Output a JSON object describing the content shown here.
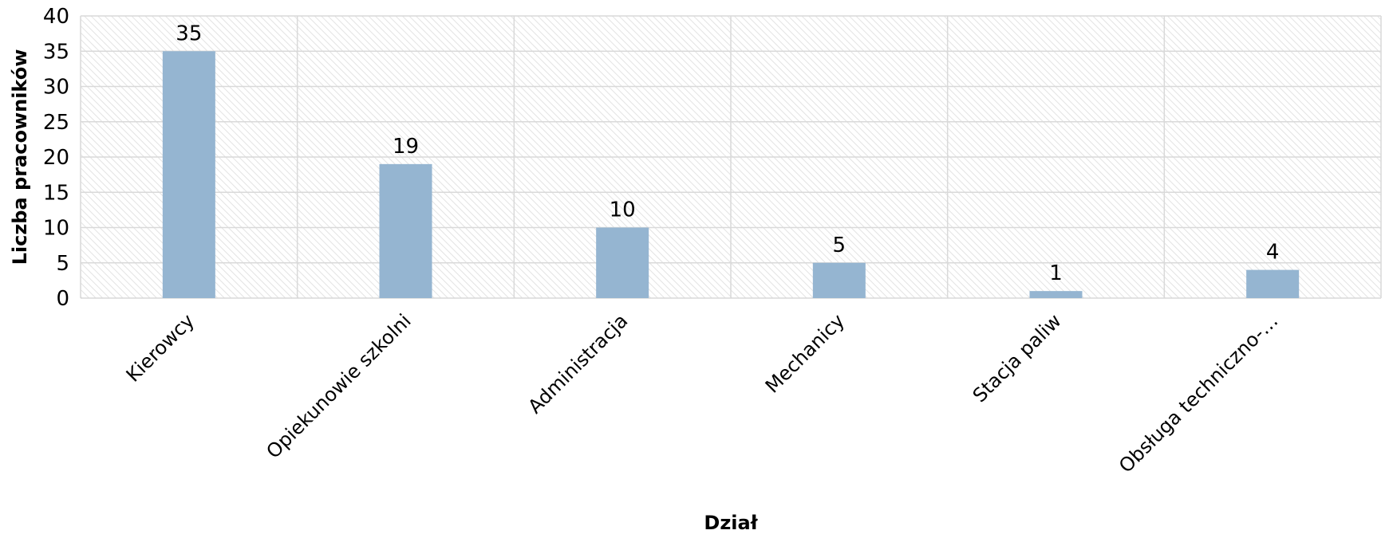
{
  "chart_data": {
    "type": "bar",
    "xlabel": "Dział",
    "ylabel": "Liczba pracowników",
    "categories": [
      "Kierowcy",
      "Opiekunowie szkolni",
      "Administracja",
      "Mechanicy",
      "Stacja paliw",
      "Obsługa techniczno-…"
    ],
    "values": [
      35,
      19,
      10,
      5,
      1,
      4
    ],
    "ylim": [
      0,
      40
    ],
    "ytick_step": 5,
    "grid": true,
    "legend": "none",
    "data_labels": true
  },
  "colors": {
    "bar": "#95b5d1",
    "grid": "#d9d9d9",
    "plot_background_hatch": "#e3e3e3"
  }
}
